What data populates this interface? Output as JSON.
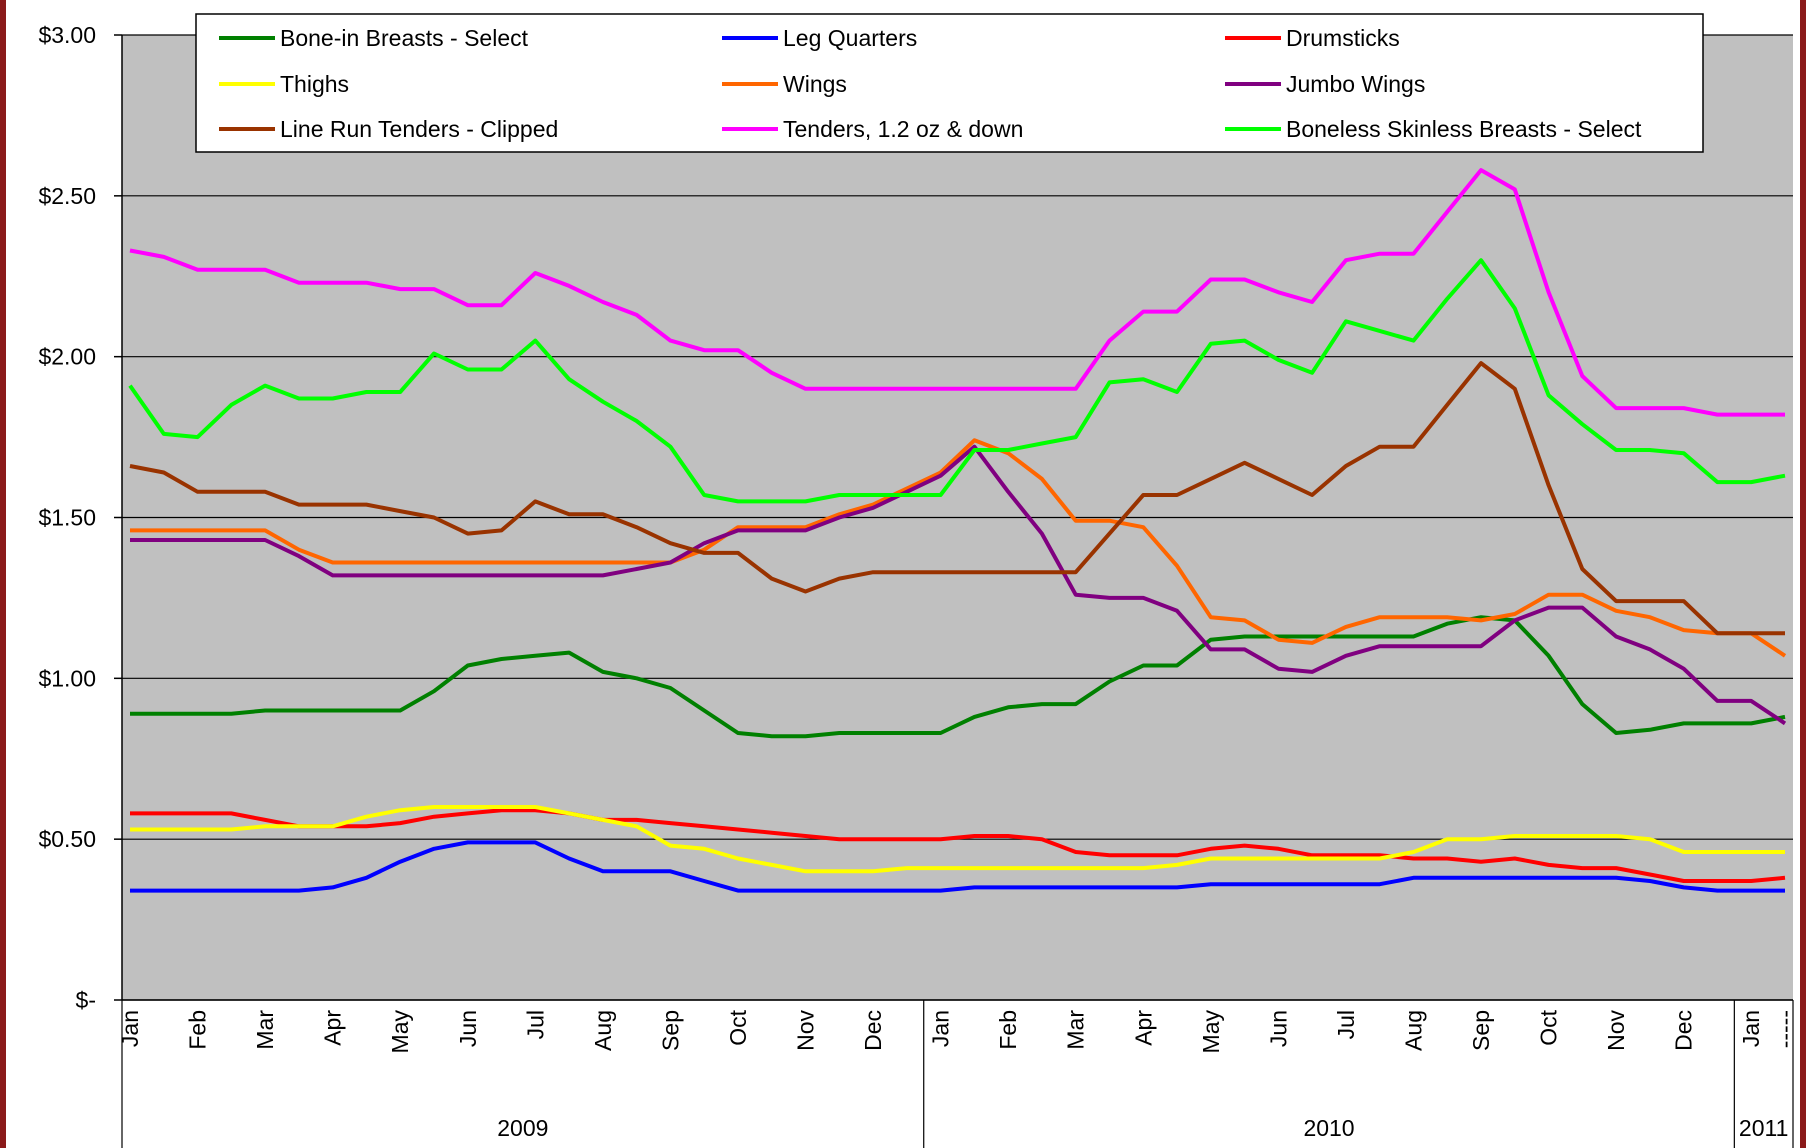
{
  "chart_data": {
    "type": "line",
    "categories": [
      "Jan",
      null,
      "Feb",
      null,
      "Mar",
      null,
      "Apr",
      null,
      "May",
      null,
      "Jun",
      null,
      "Jul",
      null,
      "Aug",
      null,
      "Sep",
      null,
      "Oct",
      null,
      "Nov",
      null,
      "Dec",
      null,
      "Jan",
      null,
      "Feb",
      null,
      "Mar",
      null,
      "Apr",
      null,
      "May",
      null,
      "Jun",
      null,
      "Jul",
      null,
      "Aug",
      null,
      "Sep",
      null,
      "Oct",
      null,
      "Nov",
      null,
      "Dec",
      null,
      "Jan",
      "-----"
    ],
    "years": [
      "2009",
      "2010",
      "2011"
    ],
    "ylim": [
      0,
      3
    ],
    "yticks": [
      {
        "value": 0,
        "label": "$-"
      },
      {
        "value": 0.5,
        "label": "$0.50"
      },
      {
        "value": 1,
        "label": "$1.00"
      },
      {
        "value": 1.5,
        "label": "$1.50"
      },
      {
        "value": 2,
        "label": "$2.00"
      },
      {
        "value": 2.5,
        "label": "$2.50"
      },
      {
        "value": 3,
        "label": "$3.00"
      }
    ],
    "grid": true,
    "legend": "top",
    "series": [
      {
        "name": "Bone-in Breasts - Select",
        "color": "#008000",
        "values": [
          0.89,
          0.89,
          0.89,
          0.89,
          0.9,
          0.9,
          0.9,
          0.9,
          0.9,
          0.96,
          1.04,
          1.06,
          1.07,
          1.08,
          1.02,
          1.0,
          0.97,
          0.9,
          0.83,
          0.82,
          0.82,
          0.83,
          0.83,
          0.83,
          0.83,
          0.88,
          0.91,
          0.92,
          0.92,
          0.99,
          1.04,
          1.04,
          1.12,
          1.13,
          1.13,
          1.13,
          1.13,
          1.13,
          1.13,
          1.17,
          1.19,
          1.18,
          1.07,
          0.92,
          0.83,
          0.84,
          0.86,
          0.86,
          0.86,
          0.88
        ]
      },
      {
        "name": "Leg Quarters",
        "color": "#0000ff",
        "values": [
          0.34,
          0.34,
          0.34,
          0.34,
          0.34,
          0.34,
          0.35,
          0.38,
          0.43,
          0.47,
          0.49,
          0.49,
          0.49,
          0.44,
          0.4,
          0.4,
          0.4,
          0.37,
          0.34,
          0.34,
          0.34,
          0.34,
          0.34,
          0.34,
          0.34,
          0.35,
          0.35,
          0.35,
          0.35,
          0.35,
          0.35,
          0.35,
          0.36,
          0.36,
          0.36,
          0.36,
          0.36,
          0.36,
          0.38,
          0.38,
          0.38,
          0.38,
          0.38,
          0.38,
          0.38,
          0.37,
          0.35,
          0.34,
          0.34,
          0.34
        ]
      },
      {
        "name": "Drumsticks",
        "color": "#ff0000",
        "values": [
          0.58,
          0.58,
          0.58,
          0.58,
          0.56,
          0.54,
          0.54,
          0.54,
          0.55,
          0.57,
          0.58,
          0.59,
          0.59,
          0.58,
          0.56,
          0.56,
          0.55,
          0.54,
          0.53,
          0.52,
          0.51,
          0.5,
          0.5,
          0.5,
          0.5,
          0.51,
          0.51,
          0.5,
          0.46,
          0.45,
          0.45,
          0.45,
          0.47,
          0.48,
          0.47,
          0.45,
          0.45,
          0.45,
          0.44,
          0.44,
          0.43,
          0.44,
          0.42,
          0.41,
          0.41,
          0.39,
          0.37,
          0.37,
          0.37,
          0.38
        ]
      },
      {
        "name": "Thighs",
        "color": "#ffff00",
        "values": [
          0.53,
          0.53,
          0.53,
          0.53,
          0.54,
          0.54,
          0.54,
          0.57,
          0.59,
          0.6,
          0.6,
          0.6,
          0.6,
          0.58,
          0.56,
          0.54,
          0.48,
          0.47,
          0.44,
          0.42,
          0.4,
          0.4,
          0.4,
          0.41,
          0.41,
          0.41,
          0.41,
          0.41,
          0.41,
          0.41,
          0.41,
          0.42,
          0.44,
          0.44,
          0.44,
          0.44,
          0.44,
          0.44,
          0.46,
          0.5,
          0.5,
          0.51,
          0.51,
          0.51,
          0.51,
          0.5,
          0.46,
          0.46,
          0.46,
          0.46
        ]
      },
      {
        "name": "Wings",
        "color": "#ff6600",
        "values": [
          1.46,
          1.46,
          1.46,
          1.46,
          1.46,
          1.4,
          1.36,
          1.36,
          1.36,
          1.36,
          1.36,
          1.36,
          1.36,
          1.36,
          1.36,
          1.36,
          1.36,
          1.4,
          1.47,
          1.47,
          1.47,
          1.51,
          1.54,
          1.59,
          1.64,
          1.74,
          1.7,
          1.62,
          1.49,
          1.49,
          1.47,
          1.35,
          1.19,
          1.18,
          1.12,
          1.11,
          1.16,
          1.19,
          1.19,
          1.19,
          1.18,
          1.2,
          1.26,
          1.26,
          1.21,
          1.19,
          1.15,
          1.14,
          1.14,
          1.07
        ]
      },
      {
        "name": "Jumbo Wings",
        "color": "#800080",
        "values": [
          1.43,
          1.43,
          1.43,
          1.43,
          1.43,
          1.38,
          1.32,
          1.32,
          1.32,
          1.32,
          1.32,
          1.32,
          1.32,
          1.32,
          1.32,
          1.34,
          1.36,
          1.42,
          1.46,
          1.46,
          1.46,
          1.5,
          1.53,
          1.58,
          1.63,
          1.72,
          1.58,
          1.45,
          1.26,
          1.25,
          1.25,
          1.21,
          1.09,
          1.09,
          1.03,
          1.02,
          1.07,
          1.1,
          1.1,
          1.1,
          1.1,
          1.18,
          1.22,
          1.22,
          1.13,
          1.09,
          1.03,
          0.93,
          0.93,
          0.86
        ]
      },
      {
        "name": "Line Run Tenders - Clipped",
        "color": "#993300",
        "values": [
          1.66,
          1.64,
          1.58,
          1.58,
          1.58,
          1.54,
          1.54,
          1.54,
          1.52,
          1.5,
          1.45,
          1.46,
          1.55,
          1.51,
          1.51,
          1.47,
          1.42,
          1.39,
          1.39,
          1.31,
          1.27,
          1.31,
          1.33,
          1.33,
          1.33,
          1.33,
          1.33,
          1.33,
          1.33,
          1.45,
          1.57,
          1.57,
          1.62,
          1.67,
          1.62,
          1.57,
          1.66,
          1.72,
          1.72,
          1.85,
          1.98,
          1.9,
          1.6,
          1.34,
          1.24,
          1.24,
          1.24,
          1.14,
          1.14,
          1.14
        ]
      },
      {
        "name": "Tenders, 1.2 oz & down",
        "color": "#ff00ff",
        "values": [
          2.33,
          2.31,
          2.27,
          2.27,
          2.27,
          2.23,
          2.23,
          2.23,
          2.21,
          2.21,
          2.16,
          2.16,
          2.26,
          2.22,
          2.17,
          2.13,
          2.05,
          2.02,
          2.02,
          1.95,
          1.9,
          1.9,
          1.9,
          1.9,
          1.9,
          1.9,
          1.9,
          1.9,
          1.9,
          2.05,
          2.14,
          2.14,
          2.24,
          2.24,
          2.2,
          2.17,
          2.3,
          2.32,
          2.32,
          2.45,
          2.58,
          2.52,
          2.2,
          1.94,
          1.84,
          1.84,
          1.84,
          1.82,
          1.82,
          1.82
        ]
      },
      {
        "name": "Boneless Skinless Breasts - Select",
        "color": "#00ff00",
        "values": [
          1.91,
          1.76,
          1.75,
          1.85,
          1.91,
          1.87,
          1.87,
          1.89,
          1.89,
          2.01,
          1.96,
          1.96,
          2.05,
          1.93,
          1.86,
          1.8,
          1.72,
          1.57,
          1.55,
          1.55,
          1.55,
          1.57,
          1.57,
          1.57,
          1.57,
          1.71,
          1.71,
          1.73,
          1.75,
          1.92,
          1.93,
          1.89,
          2.04,
          2.05,
          1.99,
          1.95,
          2.11,
          2.08,
          2.05,
          2.18,
          2.3,
          2.15,
          1.88,
          1.79,
          1.71,
          1.71,
          1.7,
          1.61,
          1.61,
          1.63
        ]
      }
    ]
  }
}
